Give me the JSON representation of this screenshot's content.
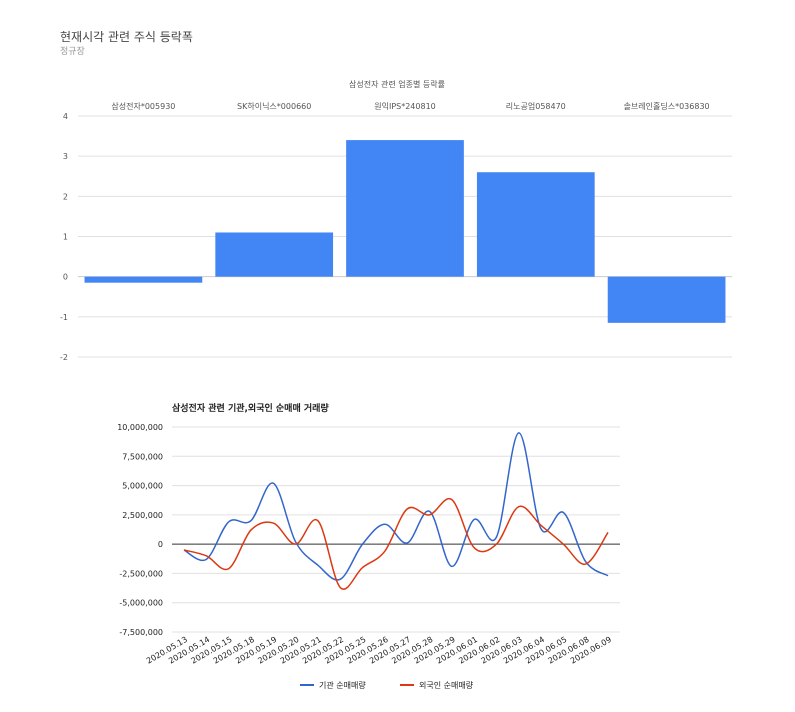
{
  "page": {
    "title": "현재시각 관련 주식 등락폭",
    "subtitle": "정규장"
  },
  "colors": {
    "bar": "#4285f4",
    "series1": "#3366cc",
    "series2": "#dc3912",
    "grid": "#e0e0e0",
    "axis_text": "#555555"
  },
  "chart_data": [
    {
      "type": "bar",
      "title": "삼성전자 관련 업종별 등락률",
      "categories": [
        "삼성전자*005930",
        "SK하이닉스*000660",
        "원익IPS*240810",
        "리노공업058470",
        "솔브레인홀딩스*036830"
      ],
      "values": [
        -0.15,
        1.1,
        3.4,
        2.6,
        -1.15
      ],
      "ylim": [
        -2,
        4
      ],
      "yticks": [
        "4",
        "3",
        "2",
        "1",
        "0",
        "-1",
        "-2"
      ],
      "ytick_values": [
        4,
        3,
        2,
        1,
        0,
        -1,
        -2
      ],
      "xlabel": "",
      "ylabel": "",
      "grid": true,
      "category_labels_position": "top"
    },
    {
      "type": "line",
      "title": "삼성전자 관련 기관,외국인 순매매 거래량",
      "x": [
        "2020.05.13",
        "2020.05.14",
        "2020.05.15",
        "2020.05.18",
        "2020.05.19",
        "2020.05.20",
        "2020.05.21",
        "2020.05.22",
        "2020.05.25",
        "2020.05.26",
        "2020.05.27",
        "2020.05.28",
        "2020.05.29",
        "2020.06.01",
        "2020.06.02",
        "2020.06.03",
        "2020.06.04",
        "2020.06.05",
        "2020.06.08",
        "2020.06.09"
      ],
      "series": [
        {
          "name": "기관 순매매량",
          "values": [
            -500000,
            -1300000,
            1900000,
            2000000,
            5200000,
            200000,
            -1800000,
            -3000000,
            0,
            1700000,
            100000,
            2800000,
            -1900000,
            2100000,
            600000,
            9500000,
            1300000,
            2700000,
            -1500000,
            -2700000
          ]
        },
        {
          "name": "외국인 순매매량",
          "values": [
            -500000,
            -1000000,
            -2100000,
            1200000,
            1800000,
            0,
            2000000,
            -3700000,
            -2000000,
            -600000,
            3000000,
            2500000,
            3800000,
            -300000,
            0,
            3200000,
            1600000,
            0,
            -1700000,
            1000000
          ]
        }
      ],
      "ylim": [
        -7500000,
        10000000
      ],
      "yticks": [
        "10,000,000",
        "7,500,000",
        "5,000,000",
        "2,500,000",
        "0",
        "-2,500,000",
        "-5,000,000",
        "-7,500,000"
      ],
      "ytick_values": [
        10000000,
        7500000,
        5000000,
        2500000,
        0,
        -2500000,
        -5000000,
        -7500000
      ],
      "xlabel": "",
      "ylabel": "",
      "grid": true,
      "legend": "bottom"
    }
  ]
}
